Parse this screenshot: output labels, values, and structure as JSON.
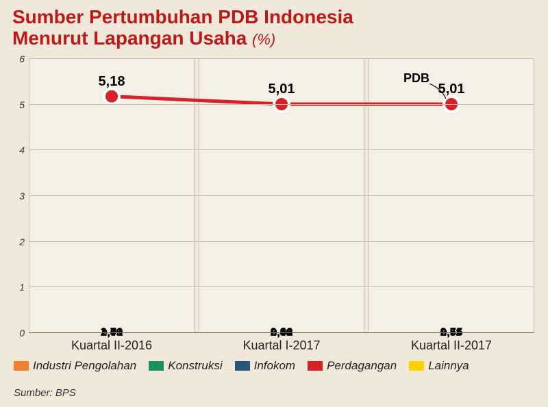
{
  "title_line1": "Sumber Pertumbuhan PDB Indonesia",
  "title_line2": "Menurut Lapangan Usaha",
  "unit": "(%)",
  "pdb_label": "PDB",
  "source_label": "Sumber: BPS",
  "chart": {
    "type": "stacked-bar-with-line",
    "ylim": [
      0,
      6
    ],
    "ytick_step": 1,
    "yticks": [
      "0",
      "1",
      "2",
      "3",
      "4",
      "5",
      "6"
    ],
    "background": "#f0e8d8",
    "panel_bg": "rgba(255,255,255,0.35)",
    "grid_color": "#c8bfa8",
    "line_color": "#d82028",
    "line_width": 5,
    "marker_radius": 11,
    "marker_fill": "#d82028",
    "marker_stroke": "#ffffff",
    "categories": [
      {
        "label": "Kuartal II-2016",
        "total": "5,18",
        "total_value": 5.18,
        "segments": [
          {
            "key": "lainnya",
            "value": 2.71,
            "label": "2,71"
          },
          {
            "key": "perdagangan",
            "value": 0.55,
            "label": "0,55"
          },
          {
            "key": "infokom",
            "value": 0.43,
            "label": "0,43"
          },
          {
            "key": "konstruksi",
            "value": 0.49,
            "label": "0,49"
          },
          {
            "key": "industri",
            "value": 1.0,
            "label": "1,00"
          }
        ]
      },
      {
        "label": "Kuartal I-2017",
        "total": "5,01",
        "total_value": 5.01,
        "segments": [
          {
            "key": "lainnya",
            "value": 2.4,
            "label": "2,40"
          },
          {
            "key": "perdagangan",
            "value": 0.66,
            "label": "0,66"
          },
          {
            "key": "infokom",
            "value": 0.44,
            "label": "0,44"
          },
          {
            "key": "konstruksi",
            "value": 0.59,
            "label": "0,59"
          },
          {
            "key": "industri",
            "value": 0.92,
            "label": "0,92"
          }
        ]
      },
      {
        "label": "Kuartal II-2017",
        "total": "5,01",
        "total_value": 5.01,
        "segments": [
          {
            "key": "lainnya",
            "value": 2.55,
            "label": "2,55"
          },
          {
            "key": "perdagangan",
            "value": 0.51,
            "label": "0,51"
          },
          {
            "key": "infokom",
            "value": 0.53,
            "label": "0,53"
          },
          {
            "key": "konstruksi",
            "value": 0.66,
            "label": "0,66"
          },
          {
            "key": "industri",
            "value": 0.76,
            "label": "0,76"
          }
        ]
      }
    ],
    "series_colors": {
      "industri": "#f08030",
      "konstruksi": "#1a9060",
      "infokom": "#2a5878",
      "perdagangan": "#d82028",
      "lainnya": "#ffd000"
    },
    "legend": [
      {
        "key": "industri",
        "label": "Industri Pengolahan"
      },
      {
        "key": "konstruksi",
        "label": "Konstruksi"
      },
      {
        "key": "infokom",
        "label": "Infokom"
      },
      {
        "key": "perdagangan",
        "label": "Perdagangan"
      },
      {
        "key": "lainnya",
        "label": "Lainnya"
      }
    ]
  }
}
